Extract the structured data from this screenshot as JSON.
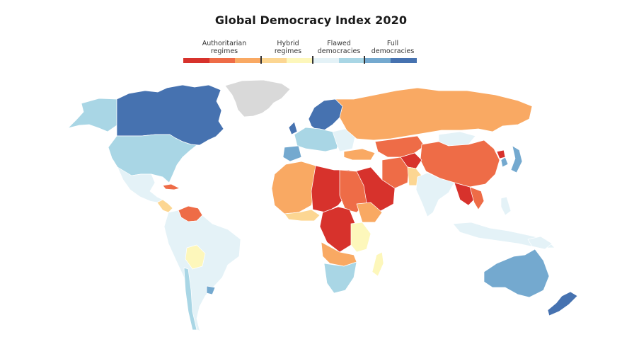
{
  "title": "Global Democracy Index 2020",
  "legend": {
    "groups": [
      {
        "label_line1": "Authoritarian",
        "label_line2": "regimes"
      },
      {
        "label_line1": "Hybrid",
        "label_line2": "regimes"
      },
      {
        "label_line1": "Flawed",
        "label_line2": "democracies"
      },
      {
        "label_line1": "Full",
        "label_line2": "democracies"
      }
    ],
    "colors": [
      "#d7322c",
      "#ee6c47",
      "#f9a963",
      "#fcd692",
      "#fdf7bb",
      "#e4f2f7",
      "#a9d6e5",
      "#74a9cf",
      "#4672b0"
    ]
  },
  "palette": {
    "authoritarian_dark": "#d7322c",
    "authoritarian_mid": "#ee6c47",
    "authoritarian_light": "#f9a963",
    "hybrid_dark": "#fcd692",
    "hybrid_light": "#fdf7bb",
    "flawed_light": "#e4f2f7",
    "flawed_mid": "#a9d6e5",
    "full_light": "#74a9cf",
    "full_dark": "#4672b0",
    "no_data": "#d9d9d9"
  }
}
